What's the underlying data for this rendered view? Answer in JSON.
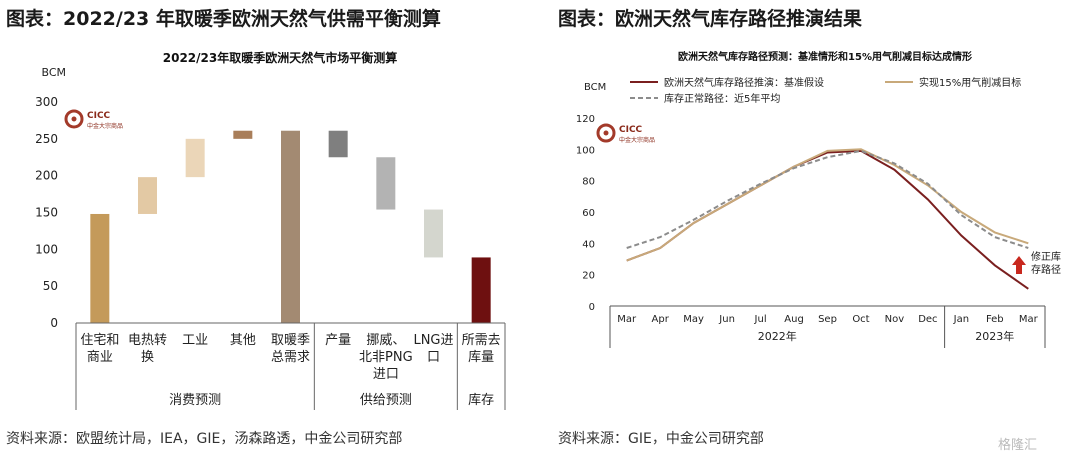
{
  "left": {
    "header": "图表：2022/23 年取暖季欧洲天然气供需平衡测算",
    "source": "资料来源：欧盟统计局，IEA，GIE，汤森路透，中金公司研究部",
    "logo": {
      "text": "CICC",
      "sub": "中金大宗商品"
    }
  },
  "right": {
    "header": "图表：欧洲天然气库存路径推演结果",
    "source": "资料来源：GIE，中金公司研究部",
    "logo": {
      "text": "CICC",
      "sub": "中金大宗商品"
    },
    "note": [
      "修正库",
      "存路径"
    ]
  },
  "watermark": "格隆汇",
  "chart_data": [
    {
      "type": "bar",
      "title": "2022/23年取暖季欧洲天然气市场平衡测算",
      "ylabel": "BCM",
      "ylim": [
        0,
        300
      ],
      "yticks": [
        0,
        50,
        100,
        150,
        200,
        250,
        300
      ],
      "bars": [
        {
          "label": [
            "住宅和",
            "商业"
          ],
          "low": 0,
          "high": 148,
          "color": "#c49a5a"
        },
        {
          "label": [
            "电热转",
            "换"
          ],
          "low": 148,
          "high": 198,
          "color": "#e3c9a4"
        },
        {
          "label": [
            "工业"
          ],
          "low": 198,
          "high": 250,
          "color": "#ebd6b8"
        },
        {
          "label": [
            "其他"
          ],
          "low": 250,
          "high": 261,
          "color": "#a97e5a"
        },
        {
          "label": [
            "取暖季",
            "总需求"
          ],
          "low": 0,
          "high": 261,
          "color": "#a38a72"
        },
        {
          "label": [
            "产量"
          ],
          "low": 225,
          "high": 261,
          "color": "#7f7f7f"
        },
        {
          "label": [
            "挪威、",
            "北非PNG",
            "进口"
          ],
          "low": 154,
          "high": 225,
          "color": "#b3b3b3"
        },
        {
          "label": [
            "LNG进",
            "口"
          ],
          "low": 89,
          "high": 154,
          "color": "#d4d6ce"
        },
        {
          "label": [
            "所需去",
            "库量"
          ],
          "low": 0,
          "high": 89,
          "color": "#6e1010"
        }
      ],
      "groups": [
        {
          "label": "消费预测",
          "from": 0,
          "to": 4
        },
        {
          "label": "供给预测",
          "from": 5,
          "to": 7
        },
        {
          "label": "库存",
          "from": 8,
          "to": 8
        }
      ]
    },
    {
      "type": "line",
      "title": "欧洲天然气库存路径预测：基准情形和15%用气削减目标达成情形",
      "ylabel": "BCM",
      "ylim": [
        0,
        120
      ],
      "yticks": [
        0,
        20,
        40,
        60,
        80,
        100,
        120
      ],
      "categories": [
        "Mar",
        "Apr",
        "May",
        "Jun",
        "Jul",
        "Aug",
        "Sep",
        "Oct",
        "Nov",
        "Dec",
        "Jan",
        "Feb",
        "Mar"
      ],
      "year_groups": [
        {
          "label": "2022年",
          "from": 0,
          "to": 9
        },
        {
          "label": "2023年",
          "from": 10,
          "to": 12
        }
      ],
      "series": [
        {
          "name": "欧洲天然气库存路径推演：基准假设",
          "color": "#7a1f1f",
          "dash": false,
          "values": [
            29,
            37,
            53,
            65,
            77,
            89,
            98,
            99,
            87,
            68,
            45,
            26,
            11
          ]
        },
        {
          "name": "实现15%用气削减目标",
          "color": "#c8a97a",
          "dash": false,
          "values": [
            29,
            37,
            53,
            65,
            77,
            89,
            99,
            100,
            90,
            77,
            60,
            47,
            40
          ]
        },
        {
          "name": "库存正常路径：近5年平均",
          "color": "#8c8c8c",
          "dash": true,
          "values": [
            37,
            44,
            55,
            67,
            78,
            88,
            95,
            99,
            91,
            78,
            58,
            44,
            37
          ]
        }
      ]
    }
  ]
}
